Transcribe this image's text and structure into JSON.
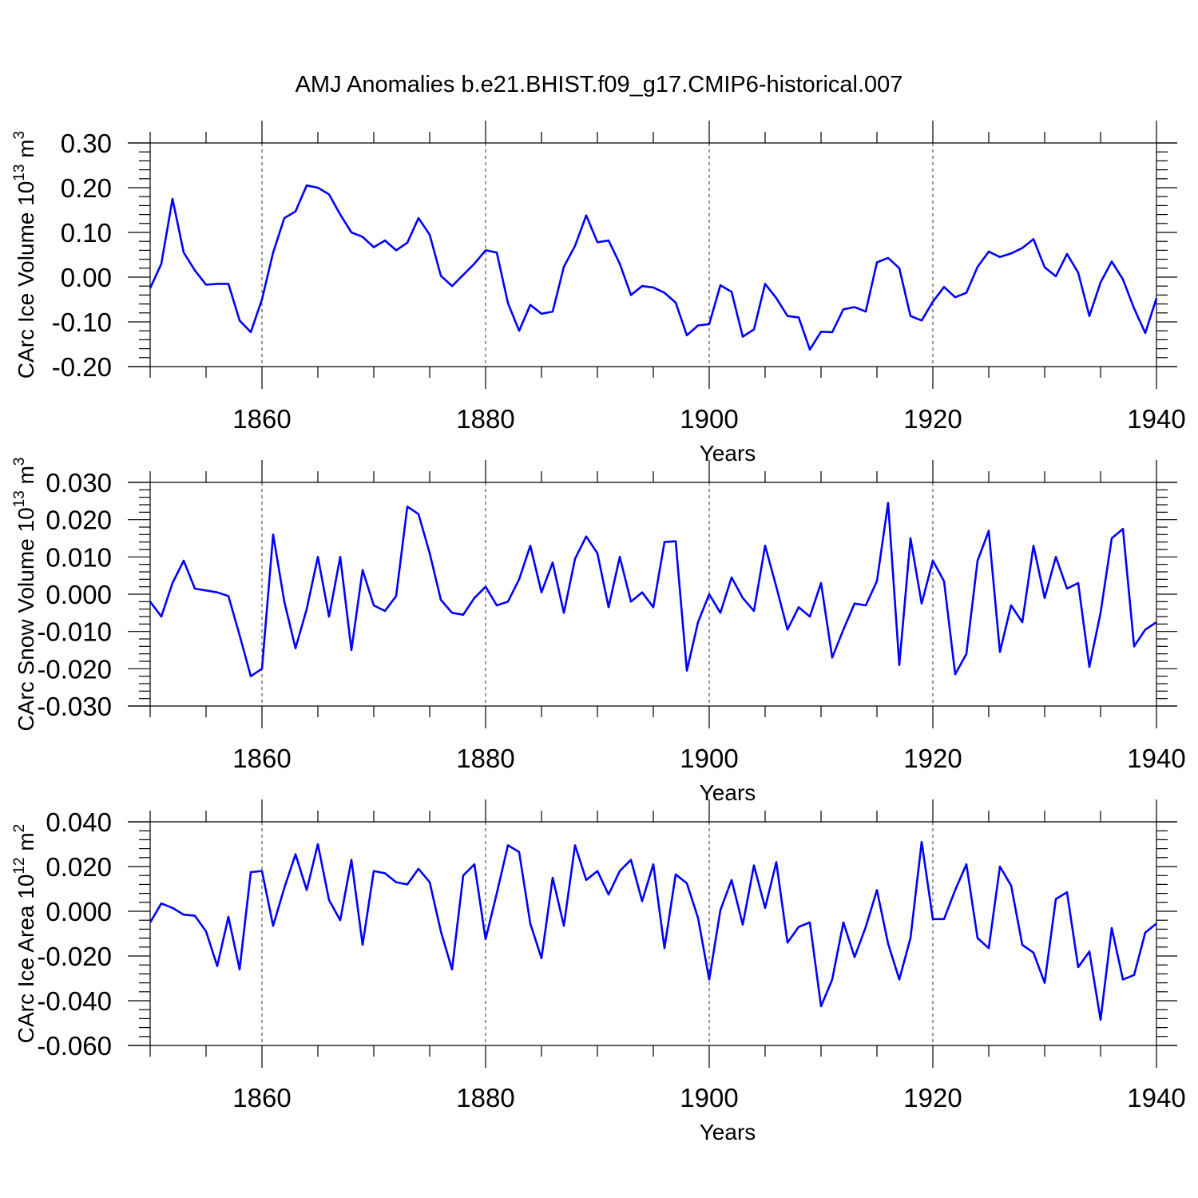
{
  "title": "AMJ Anomalies b.e21.BHIST.f09_g17.CMIP6-historical.007",
  "colors": {
    "line": "#0000ff",
    "axis": "#000000",
    "grid": "#333333"
  },
  "chart_data": [
    {
      "type": "line",
      "title": "AMJ Anomalies b.e21.BHIST.f09_g17.CMIP6-historical.007",
      "ylabel_main": "CArc Ice Volume 10",
      "ylabel_exp": "13",
      "ylabel_unit": "m",
      "ylabel_unit_exp": "3",
      "xlabel": "Years",
      "xlim": [
        1850,
        1940
      ],
      "ylim": [
        -0.2,
        0.3
      ],
      "x_ticks": [
        1860,
        1880,
        1900,
        1920,
        1940
      ],
      "y_ticks": [
        -0.2,
        -0.1,
        0.0,
        0.1,
        0.2,
        0.3
      ],
      "y_tick_labels": [
        "-0.20",
        "-0.10",
        "0.00",
        "0.10",
        "0.20",
        "0.30"
      ],
      "x_start": 1850,
      "values": [
        -0.025,
        0.03,
        0.175,
        0.055,
        0.015,
        -0.017,
        -0.015,
        -0.015,
        -0.097,
        -0.123,
        -0.05,
        0.055,
        0.132,
        0.147,
        0.205,
        0.2,
        0.185,
        0.14,
        0.1,
        0.09,
        0.067,
        0.082,
        0.06,
        0.077,
        0.132,
        0.095,
        0.003,
        -0.02,
        0.005,
        0.03,
        0.06,
        0.055,
        -0.058,
        -0.12,
        -0.062,
        -0.082,
        -0.077,
        0.023,
        0.07,
        0.138,
        0.078,
        0.082,
        0.03,
        -0.04,
        -0.02,
        -0.023,
        -0.035,
        -0.057,
        -0.13,
        -0.108,
        -0.105,
        -0.018,
        -0.033,
        -0.133,
        -0.117,
        -0.015,
        -0.047,
        -0.087,
        -0.09,
        -0.162,
        -0.122,
        -0.123,
        -0.072,
        -0.067,
        -0.077,
        0.033,
        0.043,
        0.02,
        -0.087,
        -0.097,
        -0.055,
        -0.022,
        -0.045,
        -0.035,
        0.023,
        0.057,
        0.045,
        0.053,
        0.065,
        0.085,
        0.022,
        0.002,
        0.052,
        0.01,
        -0.087,
        -0.012,
        0.035,
        -0.005,
        -0.07,
        -0.125,
        -0.047
      ]
    },
    {
      "type": "line",
      "ylabel_main": "CArc Snow Volume 10",
      "ylabel_exp": "13",
      "ylabel_unit": "m",
      "ylabel_unit_exp": "3",
      "xlabel": "Years",
      "xlim": [
        1850,
        1940
      ],
      "ylim": [
        -0.03,
        0.03
      ],
      "x_ticks": [
        1860,
        1880,
        1900,
        1920,
        1940
      ],
      "y_ticks": [
        -0.03,
        -0.02,
        -0.01,
        0.0,
        0.01,
        0.02,
        0.03
      ],
      "y_tick_labels": [
        "-0.030",
        "-0.020",
        "-0.010",
        "0.000",
        "0.010",
        "0.020",
        "0.030"
      ],
      "x_start": 1850,
      "values": [
        -0.002,
        -0.006,
        0.003,
        0.009,
        0.0015,
        0.001,
        0.0005,
        -0.0005,
        -0.011,
        -0.022,
        -0.02,
        0.016,
        -0.002,
        -0.0145,
        -0.004,
        0.01,
        -0.006,
        0.01,
        -0.015,
        0.0065,
        -0.003,
        -0.0045,
        -0.0005,
        0.0235,
        0.0215,
        0.011,
        -0.0015,
        -0.005,
        -0.0055,
        -0.001,
        0.002,
        -0.003,
        -0.002,
        0.004,
        0.013,
        0.0005,
        0.0085,
        -0.005,
        0.0095,
        0.0155,
        0.011,
        -0.0035,
        0.01,
        -0.002,
        0.0005,
        -0.0035,
        0.014,
        0.0142,
        -0.0205,
        -0.0075,
        0.0,
        -0.005,
        0.0045,
        -0.001,
        -0.0045,
        0.013,
        0.002,
        -0.0095,
        -0.0035,
        -0.006,
        0.003,
        -0.017,
        -0.0095,
        -0.0025,
        -0.003,
        0.0035,
        0.0245,
        -0.019,
        0.015,
        -0.0025,
        0.009,
        0.0035,
        -0.0215,
        -0.016,
        0.009,
        0.017,
        -0.0155,
        -0.003,
        -0.0075,
        0.013,
        -0.001,
        0.01,
        0.0015,
        0.003,
        -0.0195,
        -0.005,
        0.015,
        0.0175,
        -0.014,
        -0.0095,
        -0.0075
      ]
    },
    {
      "type": "line",
      "ylabel_main": "CArc Ice Area 10",
      "ylabel_exp": "12",
      "ylabel_unit": "m",
      "ylabel_unit_exp": "2",
      "xlabel": "Years",
      "xlim": [
        1850,
        1940
      ],
      "ylim": [
        -0.06,
        0.04
      ],
      "x_ticks": [
        1860,
        1880,
        1900,
        1920,
        1940
      ],
      "y_ticks": [
        -0.06,
        -0.04,
        -0.02,
        0.0,
        0.02,
        0.04
      ],
      "y_tick_labels": [
        "-0.060",
        "-0.040",
        "-0.020",
        "0.000",
        "0.020",
        "0.040"
      ],
      "x_start": 1850,
      "values": [
        -0.005,
        0.0035,
        0.0015,
        -0.0015,
        -0.002,
        -0.009,
        -0.0245,
        -0.0025,
        -0.026,
        0.0175,
        0.018,
        -0.0065,
        0.0105,
        0.0255,
        0.0095,
        0.03,
        0.005,
        -0.004,
        0.023,
        -0.015,
        0.018,
        0.017,
        0.013,
        0.012,
        0.019,
        0.013,
        -0.009,
        -0.026,
        0.016,
        0.021,
        -0.0125,
        0.008,
        0.0295,
        0.0265,
        -0.0055,
        -0.021,
        0.015,
        -0.0065,
        0.0295,
        0.014,
        0.018,
        0.0075,
        0.018,
        0.023,
        0.0045,
        0.021,
        -0.0165,
        0.0165,
        0.0125,
        -0.003,
        -0.0305,
        0.0005,
        0.014,
        -0.006,
        0.0205,
        0.0015,
        0.022,
        -0.014,
        -0.007,
        -0.005,
        -0.0425,
        -0.0305,
        -0.005,
        -0.0205,
        -0.007,
        0.0095,
        -0.0145,
        -0.0305,
        -0.012,
        0.031,
        -0.0035,
        -0.0035,
        0.0095,
        0.021,
        -0.012,
        -0.0165,
        0.02,
        0.0115,
        -0.015,
        -0.0185,
        -0.032,
        0.0055,
        0.0085,
        -0.025,
        -0.018,
        -0.0485,
        -0.0075,
        -0.0305,
        -0.0285,
        -0.0095,
        -0.0055
      ]
    }
  ]
}
